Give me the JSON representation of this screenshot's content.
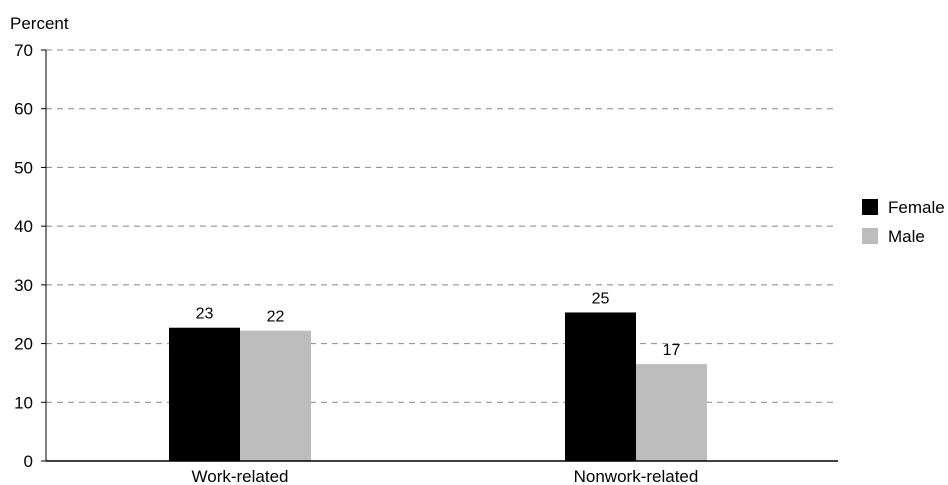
{
  "chart_data": {
    "type": "bar",
    "title": "",
    "xlabel": "",
    "ylabel": "Percent",
    "ylim": [
      0,
      70
    ],
    "yticks": [
      0,
      10,
      20,
      30,
      40,
      50,
      60,
      70
    ],
    "ytick_labels": [
      "0",
      "10",
      "20",
      "30",
      "40",
      "50",
      "60",
      "70"
    ],
    "grid": true,
    "legend_position": "right",
    "categories": [
      "Work-related",
      "Nonwork-related"
    ],
    "series": [
      {
        "name": "Female",
        "color": "#000000",
        "values": [
          22.7,
          25.3
        ],
        "labels": [
          "23",
          "25"
        ]
      },
      {
        "name": "Male",
        "color": "#bdbdbd",
        "values": [
          22.2,
          16.5
        ],
        "labels": [
          "22",
          "17"
        ]
      }
    ]
  }
}
